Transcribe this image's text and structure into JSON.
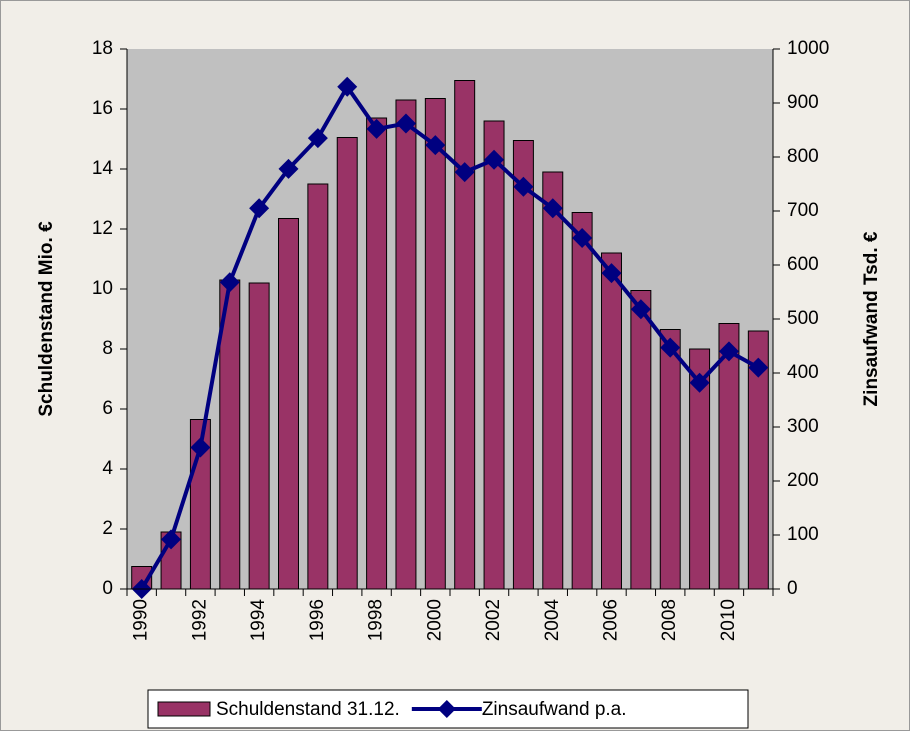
{
  "chart_data": {
    "type": "bar",
    "categories": [
      "1990",
      null,
      "1992",
      null,
      "1994",
      null,
      "1996",
      null,
      "1998",
      null,
      "2000",
      null,
      "2002",
      null,
      "2004",
      null,
      "2006",
      null,
      "2008",
      null,
      "2010",
      null
    ],
    "series": [
      {
        "name": "Schuldenstand 31.12.",
        "type": "bar",
        "color": "#993366",
        "axis": "y",
        "values": [
          0.75,
          1.9,
          5.65,
          10.3,
          10.2,
          12.35,
          13.5,
          15.05,
          15.7,
          16.3,
          16.35,
          16.95,
          15.6,
          14.95,
          13.9,
          12.55,
          11.2,
          9.95,
          8.65,
          8.0,
          8.85,
          8.6
        ]
      },
      {
        "name": "Zinsaufwand p.a.",
        "type": "line",
        "color": "#000080",
        "axis": "y2",
        "values": [
          0,
          92,
          262,
          568,
          705,
          778,
          835,
          930,
          852,
          862,
          822,
          772,
          795,
          745,
          705,
          650,
          585,
          518,
          447,
          382,
          440,
          410
        ]
      }
    ],
    "ylabel": "Schuldenstand Mio. €",
    "y2label": "Zinsaufwand Tsd. €",
    "ylim": [
      0,
      18
    ],
    "yticks": [
      0,
      2,
      4,
      6,
      8,
      10,
      12,
      14,
      16,
      18
    ],
    "y2lim": [
      0,
      1000
    ],
    "y2ticks": [
      0,
      100,
      200,
      300,
      400,
      500,
      600,
      700,
      800,
      900,
      1000
    ],
    "legend": "bottom"
  }
}
